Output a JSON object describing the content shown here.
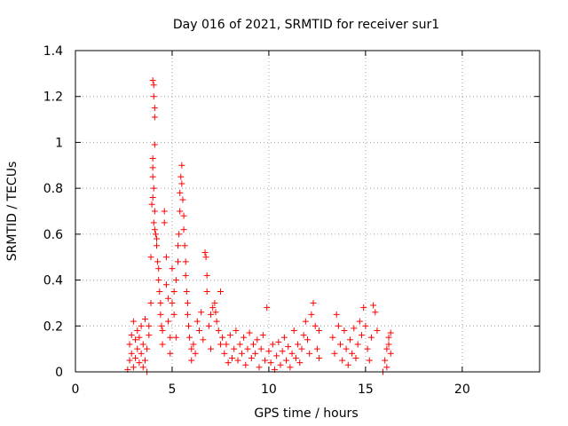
{
  "chart_data": {
    "type": "scatter",
    "title": "Day 016 of 2021, SRMTID for receiver sur1",
    "xlabel": "GPS time / hours",
    "ylabel": "SRMTID / TECUs",
    "xlim": [
      0,
      24
    ],
    "ylim": [
      0,
      1.4
    ],
    "xticks": [
      "0",
      "5",
      "10",
      "15",
      "20"
    ],
    "yticks": [
      "0",
      "0.2",
      "0.4",
      "0.6",
      "0.8",
      "1",
      "1.2",
      "1.4"
    ],
    "grid": true,
    "marker": "+",
    "color": "#ff0000",
    "series": [
      {
        "name": "SRMTID",
        "points": [
          [
            2.7,
            0.01
          ],
          [
            2.8,
            0.05
          ],
          [
            2.8,
            0.12
          ],
          [
            2.9,
            0.16
          ],
          [
            2.9,
            0.08
          ],
          [
            3.0,
            0.22
          ],
          [
            3.0,
            0.02
          ],
          [
            3.1,
            0.14
          ],
          [
            3.1,
            0.06
          ],
          [
            3.2,
            0.18
          ],
          [
            3.2,
            0.1
          ],
          [
            3.3,
            0.04
          ],
          [
            3.3,
            0.15
          ],
          [
            3.4,
            0.08
          ],
          [
            3.4,
            0.2
          ],
          [
            3.5,
            0.02
          ],
          [
            3.5,
            0.12
          ],
          [
            3.6,
            0.23
          ],
          [
            3.6,
            0.05
          ],
          [
            3.7,
            0.0
          ],
          [
            3.7,
            0.1
          ],
          [
            3.8,
            0.16
          ],
          [
            3.8,
            0.2
          ],
          [
            3.9,
            0.3
          ],
          [
            3.9,
            0.5
          ],
          [
            3.95,
            0.73
          ],
          [
            4.0,
            1.27
          ],
          [
            4.05,
            1.25
          ],
          [
            4.05,
            1.2
          ],
          [
            4.1,
            1.15
          ],
          [
            4.1,
            1.11
          ],
          [
            4.1,
            0.99
          ],
          [
            4.0,
            0.93
          ],
          [
            4.0,
            0.89
          ],
          [
            4.0,
            0.85
          ],
          [
            4.05,
            0.8
          ],
          [
            4.0,
            0.76
          ],
          [
            4.1,
            0.7
          ],
          [
            4.05,
            0.65
          ],
          [
            4.1,
            0.62
          ],
          [
            4.15,
            0.6
          ],
          [
            4.2,
            0.58
          ],
          [
            4.2,
            0.55
          ],
          [
            4.25,
            0.48
          ],
          [
            4.3,
            0.45
          ],
          [
            4.3,
            0.4
          ],
          [
            4.35,
            0.35
          ],
          [
            4.4,
            0.3
          ],
          [
            4.4,
            0.25
          ],
          [
            4.45,
            0.2
          ],
          [
            4.5,
            0.18
          ],
          [
            4.5,
            0.12
          ],
          [
            4.6,
            0.7
          ],
          [
            4.6,
            0.65
          ],
          [
            4.7,
            0.5
          ],
          [
            4.7,
            0.38
          ],
          [
            4.8,
            0.32
          ],
          [
            4.8,
            0.22
          ],
          [
            4.9,
            0.15
          ],
          [
            4.9,
            0.08
          ],
          [
            5.0,
            0.45
          ],
          [
            5.0,
            0.3
          ],
          [
            5.1,
            0.35
          ],
          [
            5.1,
            0.25
          ],
          [
            5.2,
            0.4
          ],
          [
            5.2,
            0.15
          ],
          [
            5.3,
            0.55
          ],
          [
            5.3,
            0.48
          ],
          [
            5.35,
            0.6
          ],
          [
            5.4,
            0.7
          ],
          [
            5.4,
            0.78
          ],
          [
            5.45,
            0.85
          ],
          [
            5.5,
            0.9
          ],
          [
            5.5,
            0.82
          ],
          [
            5.55,
            0.75
          ],
          [
            5.6,
            0.68
          ],
          [
            5.6,
            0.62
          ],
          [
            5.65,
            0.55
          ],
          [
            5.7,
            0.48
          ],
          [
            5.7,
            0.42
          ],
          [
            5.75,
            0.35
          ],
          [
            5.8,
            0.3
          ],
          [
            5.8,
            0.25
          ],
          [
            5.85,
            0.2
          ],
          [
            5.9,
            0.15
          ],
          [
            6.0,
            0.1
          ],
          [
            6.0,
            0.05
          ],
          [
            6.1,
            0.12
          ],
          [
            6.2,
            0.08
          ],
          [
            6.3,
            0.22
          ],
          [
            6.4,
            0.18
          ],
          [
            6.5,
            0.26
          ],
          [
            6.6,
            0.14
          ],
          [
            6.7,
            0.52
          ],
          [
            6.75,
            0.5
          ],
          [
            6.8,
            0.42
          ],
          [
            6.8,
            0.35
          ],
          [
            6.9,
            0.2
          ],
          [
            7.0,
            0.1
          ],
          [
            7.0,
            0.25
          ],
          [
            7.1,
            0.28
          ],
          [
            7.2,
            0.3
          ],
          [
            7.25,
            0.26
          ],
          [
            7.3,
            0.22
          ],
          [
            7.4,
            0.18
          ],
          [
            7.5,
            0.35
          ],
          [
            7.5,
            0.12
          ],
          [
            7.6,
            0.15
          ],
          [
            7.7,
            0.08
          ],
          [
            7.8,
            0.12
          ],
          [
            7.9,
            0.04
          ],
          [
            8.0,
            0.16
          ],
          [
            8.1,
            0.06
          ],
          [
            8.2,
            0.1
          ],
          [
            8.3,
            0.18
          ],
          [
            8.4,
            0.05
          ],
          [
            8.5,
            0.12
          ],
          [
            8.6,
            0.08
          ],
          [
            8.7,
            0.15
          ],
          [
            8.8,
            0.03
          ],
          [
            8.9,
            0.1
          ],
          [
            9.0,
            0.17
          ],
          [
            9.1,
            0.06
          ],
          [
            9.2,
            0.12
          ],
          [
            9.3,
            0.08
          ],
          [
            9.4,
            0.14
          ],
          [
            9.5,
            0.02
          ],
          [
            9.6,
            0.1
          ],
          [
            9.7,
            0.16
          ],
          [
            9.8,
            0.05
          ],
          [
            9.9,
            0.28
          ],
          [
            10.0,
            0.09
          ],
          [
            10.1,
            0.04
          ],
          [
            10.2,
            0.12
          ],
          [
            10.3,
            0.01
          ],
          [
            10.4,
            0.07
          ],
          [
            10.5,
            0.13
          ],
          [
            10.6,
            0.03
          ],
          [
            10.7,
            0.09
          ],
          [
            10.8,
            0.15
          ],
          [
            10.9,
            0.05
          ],
          [
            11.0,
            0.11
          ],
          [
            11.1,
            0.02
          ],
          [
            11.2,
            0.08
          ],
          [
            11.3,
            0.18
          ],
          [
            11.4,
            0.06
          ],
          [
            11.5,
            0.12
          ],
          [
            11.6,
            0.04
          ],
          [
            11.7,
            0.1
          ],
          [
            11.8,
            0.16
          ],
          [
            11.9,
            0.22
          ],
          [
            12.0,
            0.14
          ],
          [
            12.1,
            0.08
          ],
          [
            12.2,
            0.25
          ],
          [
            12.3,
            0.3
          ],
          [
            12.4,
            0.2
          ],
          [
            12.5,
            0.1
          ],
          [
            12.6,
            0.06
          ],
          [
            12.6,
            0.18
          ],
          [
            13.3,
            0.15
          ],
          [
            13.4,
            0.08
          ],
          [
            13.5,
            0.25
          ],
          [
            13.6,
            0.2
          ],
          [
            13.7,
            0.12
          ],
          [
            13.8,
            0.05
          ],
          [
            13.9,
            0.18
          ],
          [
            14.0,
            0.1
          ],
          [
            14.1,
            0.03
          ],
          [
            14.2,
            0.14
          ],
          [
            14.3,
            0.08
          ],
          [
            14.4,
            0.19
          ],
          [
            14.5,
            0.06
          ],
          [
            14.6,
            0.12
          ],
          [
            14.7,
            0.22
          ],
          [
            14.8,
            0.16
          ],
          [
            14.9,
            0.28
          ],
          [
            15.0,
            0.2
          ],
          [
            15.1,
            0.1
          ],
          [
            15.2,
            0.05
          ],
          [
            15.3,
            0.15
          ],
          [
            15.4,
            0.29
          ],
          [
            15.5,
            0.26
          ],
          [
            15.6,
            0.18
          ],
          [
            15.9,
            0.0
          ],
          [
            16.0,
            0.05
          ],
          [
            16.1,
            0.1
          ],
          [
            16.2,
            0.15
          ],
          [
            16.3,
            0.17
          ],
          [
            16.3,
            0.08
          ],
          [
            16.2,
            0.12
          ],
          [
            16.1,
            0.02
          ]
        ]
      }
    ]
  }
}
